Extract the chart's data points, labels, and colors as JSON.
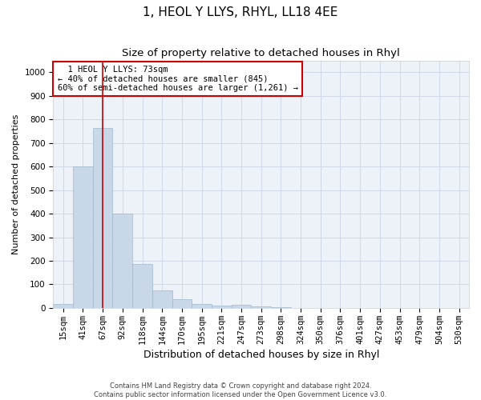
{
  "title": "1, HEOL Y LLYS, RHYL, LL18 4EE",
  "subtitle": "Size of property relative to detached houses in Rhyl",
  "xlabel": "Distribution of detached houses by size in Rhyl",
  "ylabel": "Number of detached properties",
  "footer_line1": "Contains HM Land Registry data © Crown copyright and database right 2024.",
  "footer_line2": "Contains public sector information licensed under the Open Government Licence v3.0.",
  "bin_labels": [
    "15sqm",
    "41sqm",
    "67sqm",
    "92sqm",
    "118sqm",
    "144sqm",
    "170sqm",
    "195sqm",
    "221sqm",
    "247sqm",
    "273sqm",
    "298sqm",
    "324sqm",
    "350sqm",
    "376sqm",
    "401sqm",
    "427sqm",
    "453sqm",
    "479sqm",
    "504sqm",
    "530sqm"
  ],
  "bar_values": [
    15,
    600,
    765,
    400,
    185,
    75,
    37,
    15,
    10,
    12,
    5,
    2,
    1,
    0,
    0,
    0,
    0,
    0,
    0,
    0,
    0
  ],
  "bar_color": "#c8d8e8",
  "bar_edgecolor": "#a0b8cc",
  "red_line_index": 2.0,
  "annotation_text": "  1 HEOL Y LLYS: 73sqm\n← 40% of detached houses are smaller (845)\n60% of semi-detached houses are larger (1,261) →",
  "annotation_box_color": "#ffffff",
  "annotation_box_edgecolor": "#cc0000",
  "ylim": [
    0,
    1050
  ],
  "yticks": [
    0,
    100,
    200,
    300,
    400,
    500,
    600,
    700,
    800,
    900,
    1000
  ],
  "grid_color": "#d0d8e8",
  "background_color": "#edf2f8",
  "title_fontsize": 11,
  "subtitle_fontsize": 9.5,
  "xlabel_fontsize": 9,
  "ylabel_fontsize": 8,
  "tick_fontsize": 7.5
}
